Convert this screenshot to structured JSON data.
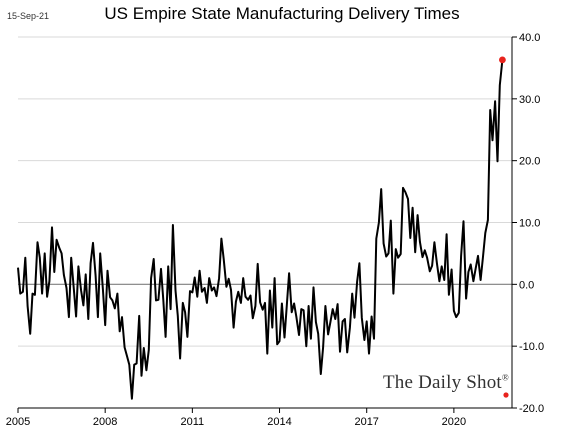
{
  "header": {
    "date": "15-Sep-21",
    "title": "US Empire State Manufacturing Delivery Times"
  },
  "brand": {
    "name": "The Daily Shot",
    "mark": "®"
  },
  "colors": {
    "line": "#000000",
    "zero_line": "#7f7f7f",
    "grid": "#d9d9d9",
    "marker": "#e8231d"
  },
  "chart_data": {
    "type": "line",
    "title": "US Empire State Manufacturing Delivery Times",
    "xlabel": "",
    "ylabel": "",
    "xlim": [
      2005.0,
      2022.0
    ],
    "ylim": [
      -20,
      40
    ],
    "yticks": [
      40,
      30,
      20,
      10,
      0,
      -10,
      -20
    ],
    "ytick_labels": [
      "40.0",
      "30.0",
      "20.0",
      "10.0",
      "0.0",
      "-10.0",
      "-20.0"
    ],
    "y_axis_side": "right",
    "xticks": [
      2005,
      2008,
      2011,
      2014,
      2017,
      2020
    ],
    "xtick_labels": [
      "2005",
      "2008",
      "2011",
      "2014",
      "2017",
      "2020"
    ],
    "grid": "horizontal",
    "last_point_marker": true,
    "series": [
      {
        "x": [
          2005.0,
          2005.08,
          2005.17,
          2005.25,
          2005.33,
          2005.42,
          2005.5,
          2005.58,
          2005.67,
          2005.75,
          2005.83,
          2005.92,
          2006.0,
          2006.08,
          2006.17,
          2006.25,
          2006.33,
          2006.42,
          2006.5,
          2006.58,
          2006.67,
          2006.75,
          2006.83,
          2006.92,
          2007.0,
          2007.08,
          2007.17,
          2007.25,
          2007.33,
          2007.42,
          2007.5,
          2007.58,
          2007.67,
          2007.75,
          2007.83,
          2007.92,
          2008.0,
          2008.08,
          2008.17,
          2008.25,
          2008.33,
          2008.42,
          2008.5,
          2008.58,
          2008.67,
          2008.75,
          2008.83,
          2008.92,
          2009.0,
          2009.08,
          2009.17,
          2009.25,
          2009.33,
          2009.42,
          2009.5,
          2009.58,
          2009.67,
          2009.75,
          2009.83,
          2009.92,
          2010.0,
          2010.08,
          2010.17,
          2010.25,
          2010.33,
          2010.42,
          2010.5,
          2010.58,
          2010.67,
          2010.75,
          2010.83,
          2010.92,
          2011.0,
          2011.08,
          2011.17,
          2011.25,
          2011.33,
          2011.42,
          2011.5,
          2011.58,
          2011.67,
          2011.75,
          2011.83,
          2011.92,
          2012.0,
          2012.08,
          2012.17,
          2012.25,
          2012.33,
          2012.42,
          2012.5,
          2012.58,
          2012.67,
          2012.75,
          2012.83,
          2012.92,
          2013.0,
          2013.08,
          2013.17,
          2013.25,
          2013.33,
          2013.42,
          2013.5,
          2013.58,
          2013.67,
          2013.75,
          2013.83,
          2013.92,
          2014.0,
          2014.08,
          2014.17,
          2014.25,
          2014.33,
          2014.42,
          2014.5,
          2014.58,
          2014.67,
          2014.75,
          2014.83,
          2014.92,
          2015.0,
          2015.08,
          2015.17,
          2015.25,
          2015.33,
          2015.42,
          2015.5,
          2015.58,
          2015.67,
          2015.75,
          2015.83,
          2015.92,
          2016.0,
          2016.08,
          2016.17,
          2016.25,
          2016.33,
          2016.42,
          2016.5,
          2016.58,
          2016.67,
          2016.75,
          2016.83,
          2016.92,
          2017.0,
          2017.08,
          2017.17,
          2017.25,
          2017.33,
          2017.42,
          2017.5,
          2017.58,
          2017.67,
          2017.75,
          2017.83,
          2017.92,
          2018.0,
          2018.08,
          2018.17,
          2018.25,
          2018.33,
          2018.42,
          2018.5,
          2018.58,
          2018.67,
          2018.75,
          2018.83,
          2018.92,
          2019.0,
          2019.08,
          2019.17,
          2019.25,
          2019.33,
          2019.42,
          2019.5,
          2019.58,
          2019.67,
          2019.75,
          2019.83,
          2019.92,
          2020.0,
          2020.08,
          2020.17,
          2020.25,
          2020.33,
          2020.42,
          2020.5,
          2020.58,
          2020.67,
          2020.75,
          2020.83,
          2020.92,
          2021.0,
          2021.08,
          2021.17,
          2021.25,
          2021.33,
          2021.42,
          2021.5,
          2021.58,
          2021.67
        ],
        "values": [
          2.7,
          -1.5,
          -1.2,
          4.3,
          -3.5,
          -8.0,
          -1.5,
          -1.7,
          6.8,
          4.3,
          -1.5,
          5.0,
          -2.0,
          0.5,
          9.2,
          2.0,
          7.2,
          5.9,
          5.0,
          1.5,
          -0.6,
          -5.3,
          4.3,
          -0.7,
          -5.2,
          2.9,
          -1.0,
          -3.4,
          1.6,
          -5.6,
          3.4,
          6.7,
          1.4,
          -5.3,
          5.0,
          -0.8,
          -6.6,
          2.2,
          -2.1,
          -2.6,
          -3.9,
          -1.5,
          -7.6,
          -5.3,
          -10.2,
          -11.6,
          -13.0,
          -18.5,
          -13.0,
          -12.8,
          -5.1,
          -14.8,
          -10.3,
          -13.9,
          -10.6,
          1.0,
          4.1,
          -2.6,
          -2.5,
          2.5,
          -2.5,
          -8.5,
          2.9,
          -4.0,
          9.6,
          -1.0,
          -5.1,
          -12.0,
          -3.0,
          -4.5,
          -8.5,
          -1.1,
          -1.3,
          1.1,
          -2.0,
          2.2,
          -1.2,
          -0.6,
          -3.0,
          1.0,
          -1.0,
          -0.5,
          -1.9,
          1.0,
          7.4,
          4.1,
          -0.4,
          0.9,
          -0.9,
          -7.0,
          -2.8,
          -1.2,
          -3.0,
          1.0,
          -2.0,
          -2.5,
          -1.8,
          -5.5,
          -3.5,
          3.3,
          -2.9,
          -4.1,
          -3.0,
          -11.2,
          -1.0,
          -7.0,
          1.0,
          -9.7,
          -9.2,
          -3.1,
          -8.6,
          -3.4,
          1.8,
          -4.5,
          -3.1,
          -5.3,
          -8.2,
          -4.0,
          -4.2,
          -10.0,
          -3.5,
          -8.8,
          -0.5,
          -6.1,
          -8.0,
          -14.5,
          -10.2,
          -3.5,
          -8.1,
          -6.1,
          -4.0,
          -5.6,
          -3.2,
          -10.9,
          -6.0,
          -5.6,
          -11.0,
          -7.0,
          -1.5,
          -5.4,
          0.4,
          3.4,
          -5.4,
          -9.0,
          -6.0,
          -11.2,
          -5.2,
          -8.8,
          7.4,
          10.0,
          15.4,
          6.6,
          4.5,
          5.0,
          10.3,
          -1.5,
          5.7,
          4.3,
          4.9,
          15.6,
          14.9,
          13.8,
          7.5,
          12.4,
          5.2,
          11.2,
          6.9,
          4.4,
          5.5,
          4.3,
          2.1,
          3.0,
          6.8,
          3.3,
          0.5,
          2.9,
          0.7,
          8.1,
          -1.7,
          2.4,
          -4.3,
          -5.3,
          -4.6,
          4.6,
          10.2,
          -2.3,
          2.0,
          3.2,
          0.5,
          2.6,
          4.6,
          0.7,
          4.3,
          8.3,
          10.4,
          28.2,
          23.3,
          29.6,
          19.9,
          32.2,
          36.3
        ]
      }
    ]
  }
}
